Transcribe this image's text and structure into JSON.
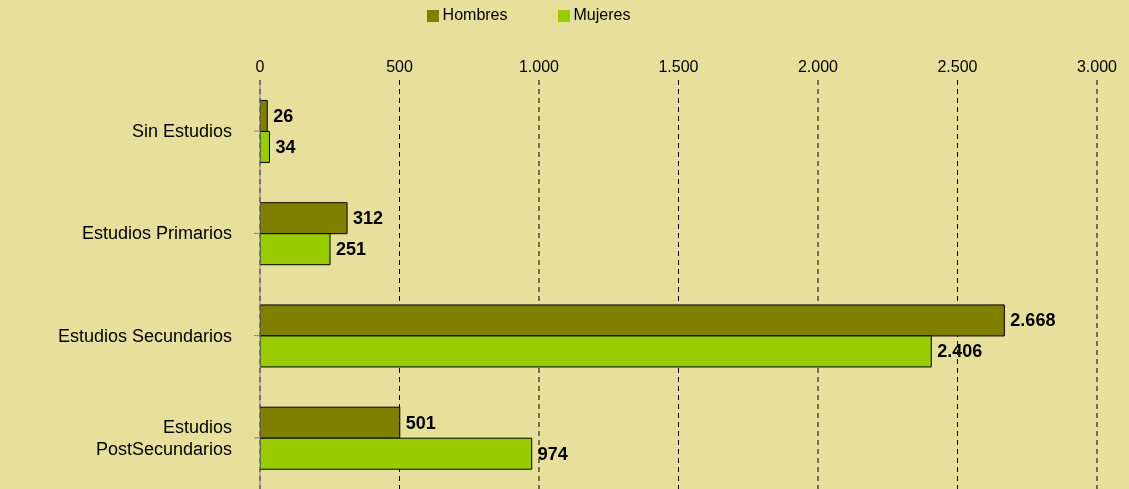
{
  "chart_data": {
    "type": "bar",
    "orientation": "horizontal",
    "categories": [
      "Sin Estudios",
      "Estudios Primarios",
      "Estudios Secundarios",
      "Estudios PostSecundarios"
    ],
    "series": [
      {
        "name": "Hombres",
        "color": "#808000",
        "values": [
          26,
          312,
          2668,
          501
        ],
        "value_labels": [
          "26",
          "312",
          "2.668",
          "501"
        ]
      },
      {
        "name": "Mujeres",
        "color": "#99cc00",
        "values": [
          34,
          251,
          2406,
          974
        ],
        "value_labels": [
          "34",
          "251",
          "2.406",
          "974"
        ]
      }
    ],
    "xlim": [
      0,
      3000
    ],
    "xticks": [
      0,
      500,
      {
        "value": 1000,
        "label": "1.000"
      },
      {
        "value": 1500,
        "label": "1.500"
      },
      {
        "value": 2000,
        "label": "2.000"
      },
      {
        "value": 2500,
        "label": "2.500"
      },
      {
        "value": 3000,
        "label": "3.000"
      }
    ],
    "grid": "x",
    "legend": "top"
  }
}
